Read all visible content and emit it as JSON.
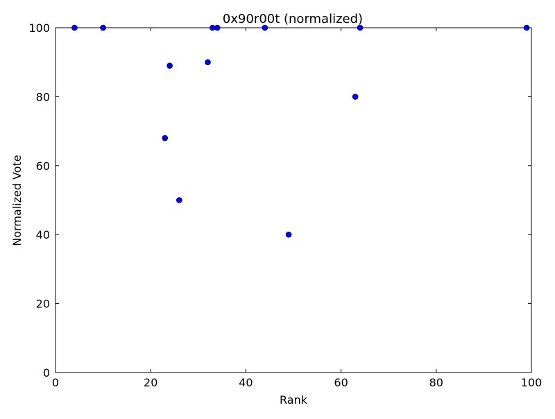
{
  "chart_data": {
    "type": "scatter",
    "title": "0x90r00t (normalized)",
    "xlabel": "Rank",
    "ylabel": "Normalized Vote",
    "xlim": [
      0,
      100
    ],
    "ylim": [
      0,
      100
    ],
    "xticks": [
      "0",
      "20",
      "40",
      "60",
      "80",
      "100"
    ],
    "yticks": [
      "0",
      "20",
      "40",
      "60",
      "80",
      "100"
    ],
    "grid": false,
    "legend": "none",
    "marker_color": "#0000ff",
    "points": [
      {
        "x": 4,
        "y": 100
      },
      {
        "x": 10,
        "y": 100
      },
      {
        "x": 10,
        "y": 100
      },
      {
        "x": 23,
        "y": 68
      },
      {
        "x": 24,
        "y": 89
      },
      {
        "x": 26,
        "y": 50
      },
      {
        "x": 32,
        "y": 90
      },
      {
        "x": 33,
        "y": 100
      },
      {
        "x": 34,
        "y": 100
      },
      {
        "x": 44,
        "y": 100
      },
      {
        "x": 49,
        "y": 40
      },
      {
        "x": 63,
        "y": 80
      },
      {
        "x": 64,
        "y": 100
      },
      {
        "x": 99,
        "y": 100
      }
    ]
  }
}
